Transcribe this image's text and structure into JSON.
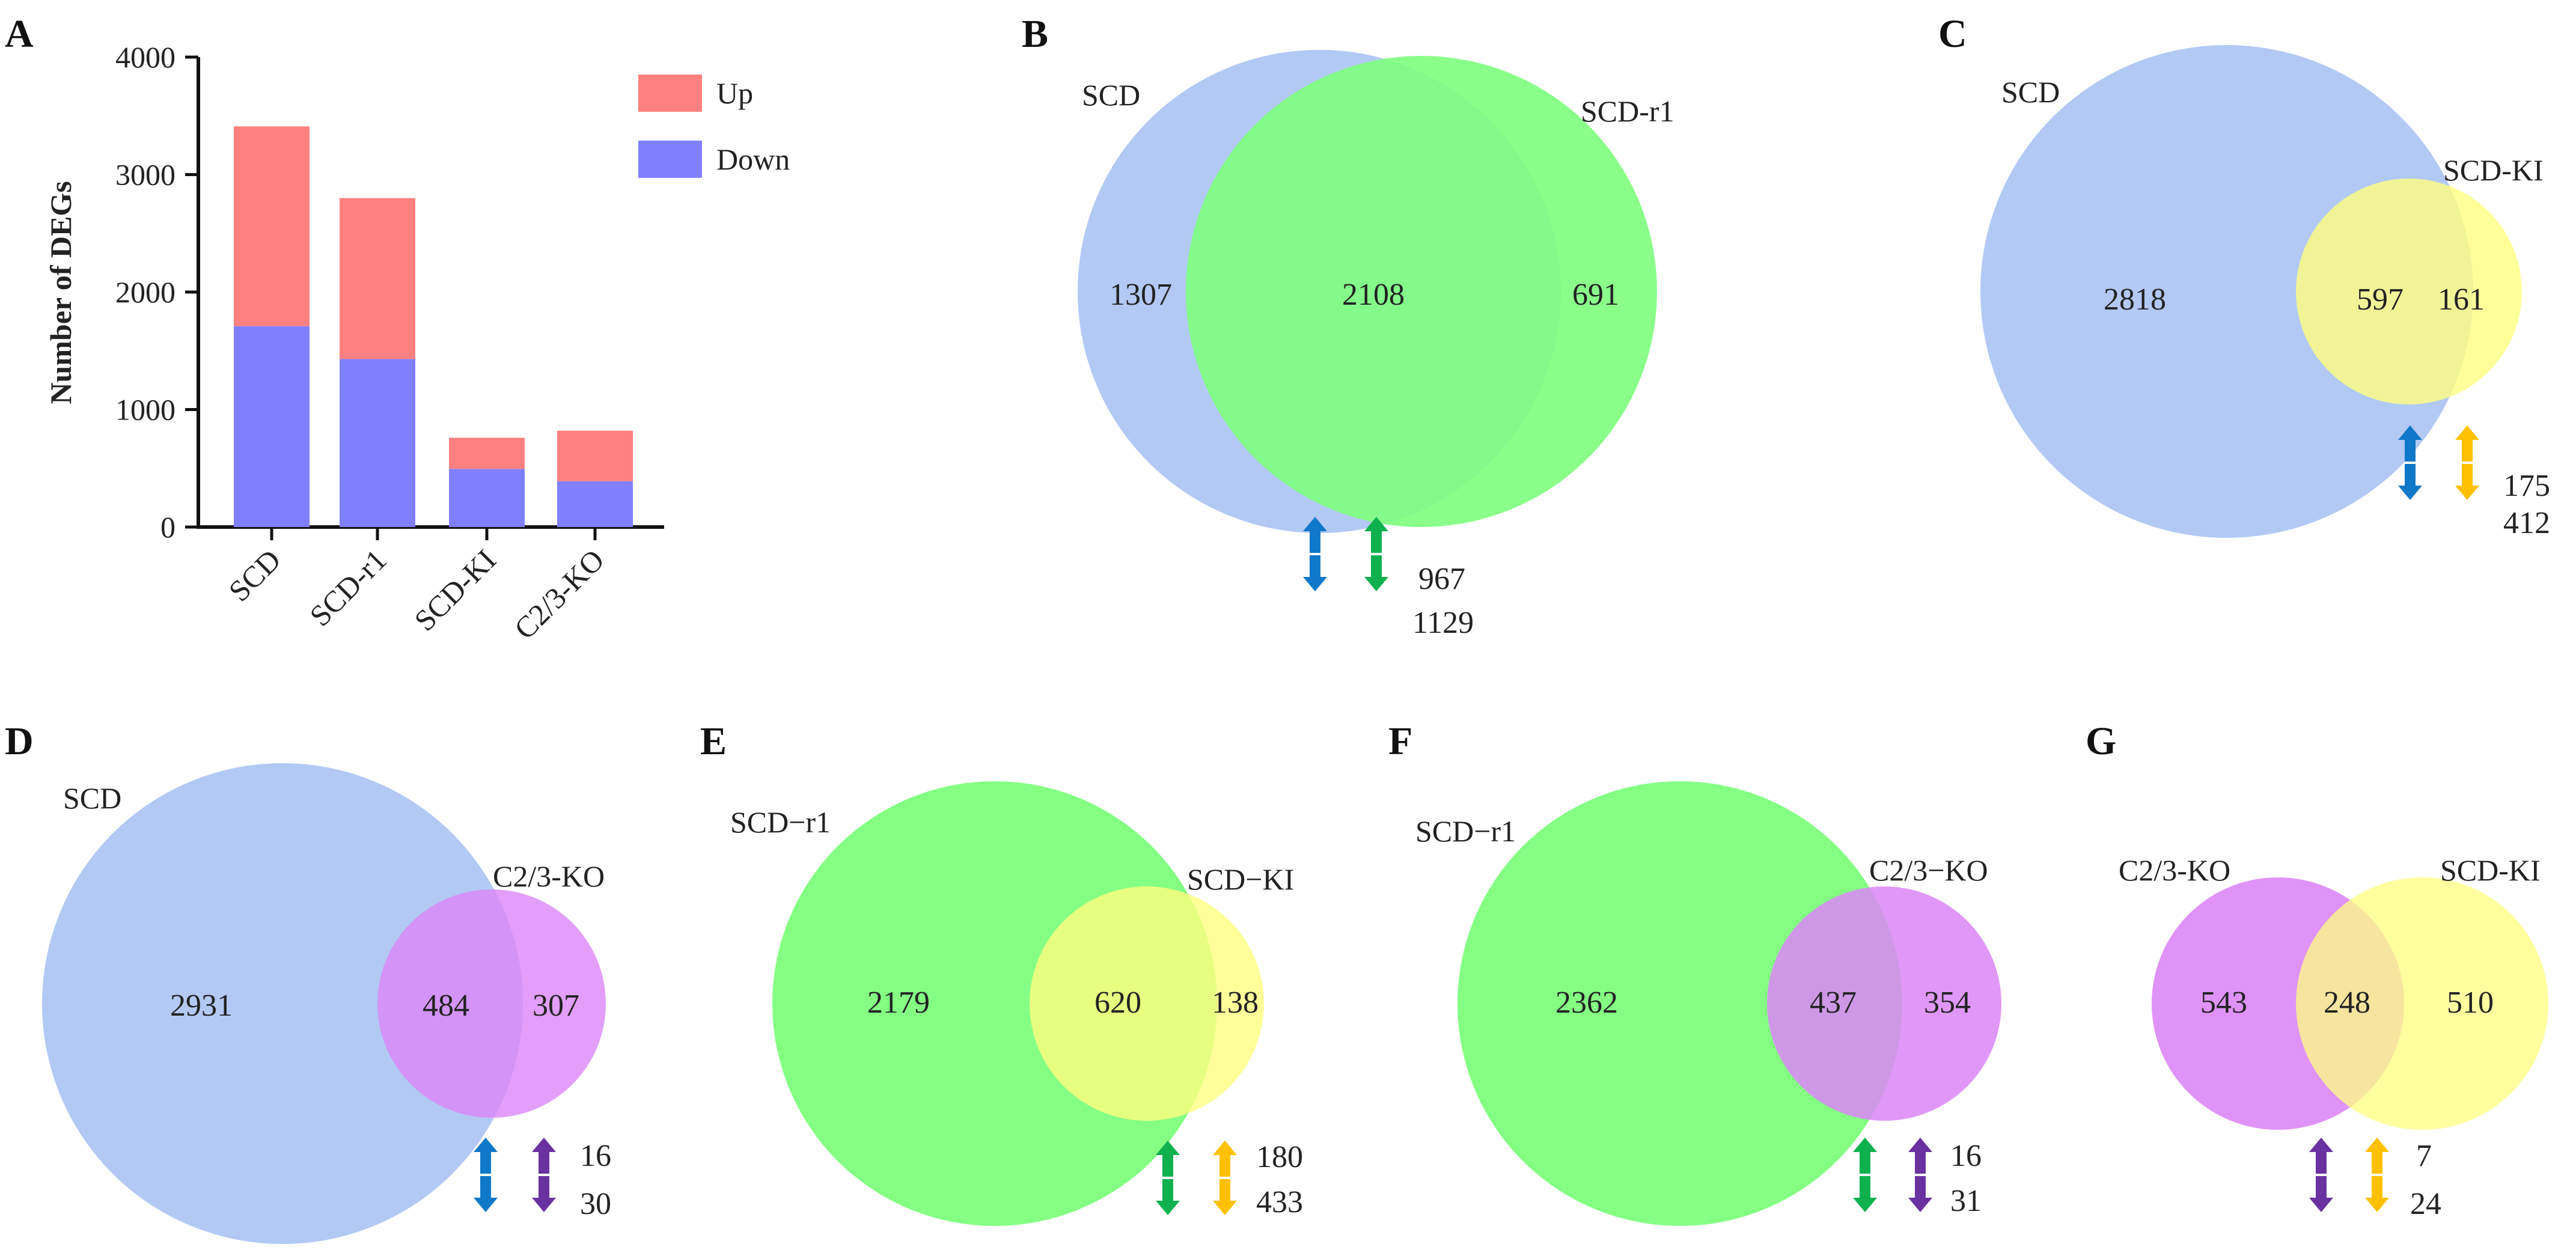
{
  "colors": {
    "up": "#ff8080",
    "down": "#8080ff",
    "scd": "#a7c1f3",
    "scd_r1": "#7dff7d",
    "scd_ki": "#ffff80",
    "c23_ko": "#db86f7",
    "arrow_blue": "#0f78c8",
    "arrow_green": "#0fb14f",
    "arrow_yellow": "#ffc000",
    "arrow_purple": "#6a32a0"
  },
  "chart_data": [
    {
      "id": "A",
      "type": "bar",
      "stacked": true,
      "categories": [
        "SCD",
        "SCD-r1",
        "SCD-KI",
        "C2/3-KO"
      ],
      "series": [
        {
          "name": "Down",
          "color_key": "down",
          "values": [
            1710,
            1430,
            495,
            390
          ]
        },
        {
          "name": "Up",
          "color_key": "up",
          "values": [
            1700,
            1370,
            265,
            430
          ]
        }
      ],
      "ylabel": "Number of DEGs",
      "ylim": [
        0,
        4000
      ],
      "yticks": [
        "0",
        "1000",
        "2000",
        "3000",
        "4000"
      ],
      "legend": [
        "Up",
        "Down"
      ],
      "legend_position": "top-right"
    },
    {
      "id": "B",
      "type": "venn",
      "left": {
        "label": "SCD",
        "color_key": "scd",
        "only": "1307"
      },
      "right": {
        "label": "SCD-r1",
        "color_key": "scd_r1",
        "only": "691"
      },
      "overlap": "2108",
      "arrows": {
        "colors": [
          "arrow_blue",
          "arrow_green"
        ],
        "up": "967",
        "down": "1129"
      }
    },
    {
      "id": "C",
      "type": "venn",
      "left": {
        "label": "SCD",
        "color_key": "scd",
        "only": "2818"
      },
      "right": {
        "label": "SCD-KI",
        "color_key": "scd_ki",
        "only": "161"
      },
      "overlap": "597",
      "arrows": {
        "colors": [
          "arrow_blue",
          "arrow_yellow"
        ],
        "up": "175",
        "down": "412"
      }
    },
    {
      "id": "D",
      "type": "venn",
      "left": {
        "label": "SCD",
        "color_key": "scd",
        "only": "2931"
      },
      "right": {
        "label": "C2/3-KO",
        "color_key": "c23_ko",
        "only": "307"
      },
      "overlap": "484",
      "arrows": {
        "colors": [
          "arrow_blue",
          "arrow_purple"
        ],
        "up": "16",
        "down": "30"
      }
    },
    {
      "id": "E",
      "type": "venn",
      "left": {
        "label": "SCD−r1",
        "color_key": "scd_r1",
        "only": "2179"
      },
      "right": {
        "label": "SCD−KI",
        "color_key": "scd_ki",
        "only": "138"
      },
      "overlap": "620",
      "arrows": {
        "colors": [
          "arrow_green",
          "arrow_yellow"
        ],
        "up": "180",
        "down": "433"
      }
    },
    {
      "id": "F",
      "type": "venn",
      "left": {
        "label": "SCD−r1",
        "color_key": "scd_r1",
        "only": "2362"
      },
      "right": {
        "label": "C2/3−KO",
        "color_key": "c23_ko",
        "only": "354"
      },
      "overlap": "437",
      "arrows": {
        "colors": [
          "arrow_green",
          "arrow_purple"
        ],
        "up": "16",
        "down": "31"
      }
    },
    {
      "id": "G",
      "type": "venn",
      "left": {
        "label": "C2/3-KO",
        "color_key": "c23_ko",
        "only": "543"
      },
      "right": {
        "label": "SCD-KI",
        "color_key": "scd_ki",
        "only": "510"
      },
      "overlap": "248",
      "arrows": {
        "colors": [
          "arrow_purple",
          "arrow_yellow"
        ],
        "up": "7",
        "down": "24"
      }
    }
  ]
}
